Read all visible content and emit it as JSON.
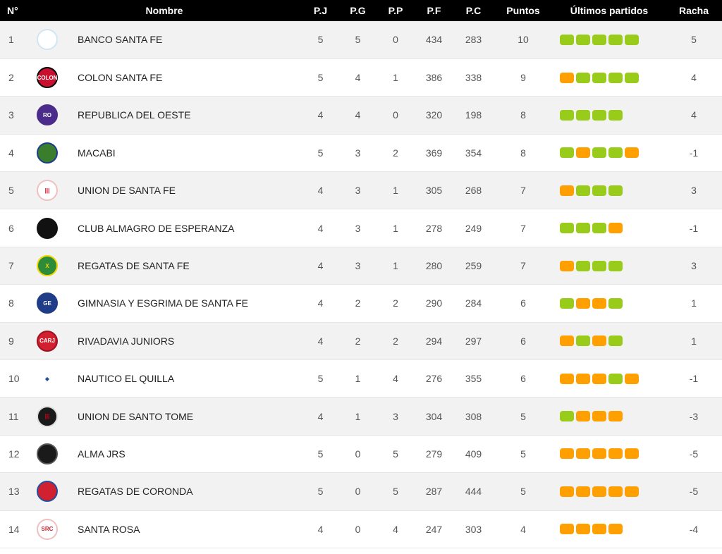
{
  "columns": [
    "N°",
    "Nombre",
    "P.J",
    "P.G",
    "P.P",
    "P.F",
    "P.C",
    "Puntos",
    "Últimos partidos",
    "Racha"
  ],
  "colors": {
    "win": "#99cc1a",
    "loss": "#ffa000",
    "header_bg": "#000000"
  },
  "rows": [
    {
      "pos": "1",
      "name": "BANCO SANTA FE",
      "pj": "5",
      "pg": "5",
      "pp": "0",
      "pf": "434",
      "pc": "283",
      "pts": "10",
      "form": [
        "W",
        "W",
        "W",
        "W",
        "W"
      ],
      "racha": "5",
      "logo": {
        "icon": "banco-santa-fe-logo",
        "bg": "#ffffff",
        "fg": "#4aa3df",
        "border": "#d0e6f5",
        "text": ""
      }
    },
    {
      "pos": "2",
      "name": "COLON SANTA FE",
      "pj": "5",
      "pg": "4",
      "pp": "1",
      "pf": "386",
      "pc": "338",
      "pts": "9",
      "form": [
        "L",
        "W",
        "W",
        "W",
        "W"
      ],
      "racha": "4",
      "logo": {
        "icon": "colon-logo",
        "bg": "#c8102e",
        "fg": "#ffffff",
        "border": "#000000",
        "text": "COLON"
      }
    },
    {
      "pos": "3",
      "name": "REPUBLICA DEL OESTE",
      "pj": "4",
      "pg": "4",
      "pp": "0",
      "pf": "320",
      "pc": "198",
      "pts": "8",
      "form": [
        "W",
        "W",
        "W",
        "W"
      ],
      "racha": "4",
      "logo": {
        "icon": "republica-del-oeste-logo",
        "bg": "#4b2c8a",
        "fg": "#ffffff",
        "border": "#4b2c8a",
        "text": "RO"
      }
    },
    {
      "pos": "4",
      "name": "MACABI",
      "pj": "5",
      "pg": "3",
      "pp": "2",
      "pf": "369",
      "pc": "354",
      "pts": "8",
      "form": [
        "W",
        "L",
        "W",
        "W",
        "L"
      ],
      "racha": "-1",
      "logo": {
        "icon": "macabi-logo",
        "bg": "#3a7d2c",
        "fg": "#ffffff",
        "border": "#1b3d8f",
        "text": ""
      }
    },
    {
      "pos": "5",
      "name": "UNION DE SANTA FE",
      "pj": "4",
      "pg": "3",
      "pp": "1",
      "pf": "305",
      "pc": "268",
      "pts": "7",
      "form": [
        "L",
        "W",
        "W",
        "W"
      ],
      "racha": "3",
      "logo": {
        "icon": "union-santa-fe-logo",
        "bg": "#ffffff",
        "fg": "#d6001c",
        "border": "#f0c0c0",
        "text": "|||"
      }
    },
    {
      "pos": "6",
      "name": "CLUB ALMAGRO DE ESPERANZA",
      "pj": "4",
      "pg": "3",
      "pp": "1",
      "pf": "278",
      "pc": "249",
      "pts": "7",
      "form": [
        "W",
        "W",
        "W",
        "L"
      ],
      "racha": "-1",
      "logo": {
        "icon": "almagro-logo",
        "bg": "#111111",
        "fg": "#ffffff",
        "border": "#111111",
        "text": ""
      }
    },
    {
      "pos": "7",
      "name": "REGATAS DE SANTA FE",
      "pj": "4",
      "pg": "3",
      "pp": "1",
      "pf": "280",
      "pc": "259",
      "pts": "7",
      "form": [
        "L",
        "W",
        "W",
        "W"
      ],
      "racha": "3",
      "logo": {
        "icon": "regatas-santa-fe-logo",
        "bg": "#2e8b3a",
        "fg": "#f2d400",
        "border": "#f2d400",
        "text": "X"
      }
    },
    {
      "pos": "8",
      "name": "GIMNASIA Y ESGRIMA DE SANTA FE",
      "pj": "4",
      "pg": "2",
      "pp": "2",
      "pf": "290",
      "pc": "284",
      "pts": "6",
      "form": [
        "W",
        "L",
        "L",
        "W"
      ],
      "racha": "1",
      "logo": {
        "icon": "gimnasia-logo",
        "bg": "#1f3c88",
        "fg": "#ffffff",
        "border": "#1f3c88",
        "text": "GE"
      }
    },
    {
      "pos": "9",
      "name": "RIVADAVIA JUNIORS",
      "pj": "4",
      "pg": "2",
      "pp": "2",
      "pf": "294",
      "pc": "297",
      "pts": "6",
      "form": [
        "L",
        "W",
        "L",
        "W"
      ],
      "racha": "1",
      "logo": {
        "icon": "rivadavia-logo",
        "bg": "#d1202f",
        "fg": "#ffffff",
        "border": "#a01020",
        "text": "CARJ"
      }
    },
    {
      "pos": "10",
      "name": "NAUTICO EL QUILLA",
      "pj": "5",
      "pg": "1",
      "pp": "4",
      "pf": "276",
      "pc": "355",
      "pts": "6",
      "form": [
        "L",
        "L",
        "L",
        "W",
        "L"
      ],
      "racha": "-1",
      "logo": {
        "icon": "nautico-el-quilla-logo",
        "bg": "#ffffff",
        "fg": "#1f4fa0",
        "border": "#ffffff",
        "text": "◆"
      }
    },
    {
      "pos": "11",
      "name": "UNION DE SANTO TOME",
      "pj": "4",
      "pg": "1",
      "pp": "3",
      "pf": "304",
      "pc": "308",
      "pts": "5",
      "form": [
        "W",
        "L",
        "L",
        "L"
      ],
      "racha": "-3",
      "logo": {
        "icon": "union-santo-tome-logo",
        "bg": "#1a1a1a",
        "fg": "#d6001c",
        "border": "#dddddd",
        "text": "|||"
      }
    },
    {
      "pos": "12",
      "name": "ALMA JRS",
      "pj": "5",
      "pg": "0",
      "pp": "5",
      "pf": "279",
      "pc": "409",
      "pts": "5",
      "form": [
        "L",
        "L",
        "L",
        "L",
        "L"
      ],
      "racha": "-5",
      "logo": {
        "icon": "alma-jrs-logo",
        "bg": "#1a1a1a",
        "fg": "#ffffff",
        "border": "#555555",
        "text": ""
      }
    },
    {
      "pos": "13",
      "name": "REGATAS DE CORONDA",
      "pj": "5",
      "pg": "0",
      "pp": "5",
      "pf": "287",
      "pc": "444",
      "pts": "5",
      "form": [
        "L",
        "L",
        "L",
        "L",
        "L"
      ],
      "racha": "-5",
      "logo": {
        "icon": "regatas-coronda-logo",
        "bg": "#d1202f",
        "fg": "#ffffff",
        "border": "#1f4fa0",
        "text": ""
      }
    },
    {
      "pos": "14",
      "name": "SANTA ROSA",
      "pj": "4",
      "pg": "0",
      "pp": "4",
      "pf": "247",
      "pc": "303",
      "pts": "4",
      "form": [
        "L",
        "L",
        "L",
        "L"
      ],
      "racha": "-4",
      "logo": {
        "icon": "santa-rosa-logo",
        "bg": "#ffffff",
        "fg": "#d1202f",
        "border": "#f0c0c0",
        "text": "SRC"
      }
    }
  ]
}
